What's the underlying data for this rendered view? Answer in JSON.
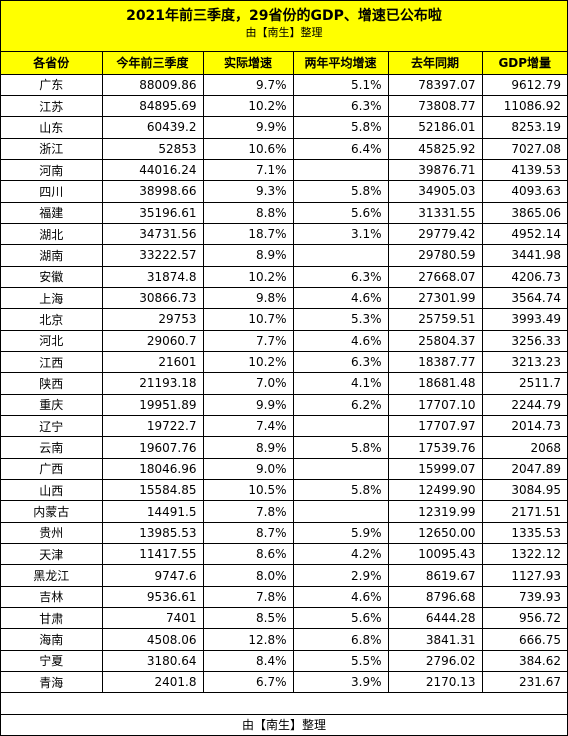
{
  "header": {
    "title": "2021年前三季度，29省份的GDP、增速已公布啦",
    "subtitle": "由【南生】整理"
  },
  "table": {
    "columns": [
      "各省份",
      "今年前三季度",
      "实际增速",
      "两年平均增速",
      "去年同期",
      "GDP增量"
    ],
    "rows": [
      [
        "广东",
        "88009.86",
        "9.7%",
        "5.1%",
        "78397.07",
        "9612.79"
      ],
      [
        "江苏",
        "84895.69",
        "10.2%",
        "6.3%",
        "73808.77",
        "11086.92"
      ],
      [
        "山东",
        "60439.2",
        "9.9%",
        "5.8%",
        "52186.01",
        "8253.19"
      ],
      [
        "浙江",
        "52853",
        "10.6%",
        "6.4%",
        "45825.92",
        "7027.08"
      ],
      [
        "河南",
        "44016.24",
        "7.1%",
        "",
        "39876.71",
        "4139.53"
      ],
      [
        "四川",
        "38998.66",
        "9.3%",
        "5.8%",
        "34905.03",
        "4093.63"
      ],
      [
        "福建",
        "35196.61",
        "8.8%",
        "5.6%",
        "31331.55",
        "3865.06"
      ],
      [
        "湖北",
        "34731.56",
        "18.7%",
        "3.1%",
        "29779.42",
        "4952.14"
      ],
      [
        "湖南",
        "33222.57",
        "8.9%",
        "",
        "29780.59",
        "3441.98"
      ],
      [
        "安徽",
        "31874.8",
        "10.2%",
        "6.3%",
        "27668.07",
        "4206.73"
      ],
      [
        "上海",
        "30866.73",
        "9.8%",
        "4.6%",
        "27301.99",
        "3564.74"
      ],
      [
        "北京",
        "29753",
        "10.7%",
        "5.3%",
        "25759.51",
        "3993.49"
      ],
      [
        "河北",
        "29060.7",
        "7.7%",
        "4.6%",
        "25804.37",
        "3256.33"
      ],
      [
        "江西",
        "21601",
        "10.2%",
        "6.3%",
        "18387.77",
        "3213.23"
      ],
      [
        "陕西",
        "21193.18",
        "7.0%",
        "4.1%",
        "18681.48",
        "2511.7"
      ],
      [
        "重庆",
        "19951.89",
        "9.9%",
        "6.2%",
        "17707.10",
        "2244.79"
      ],
      [
        "辽宁",
        "19722.7",
        "7.4%",
        "",
        "17707.97",
        "2014.73"
      ],
      [
        "云南",
        "19607.76",
        "8.9%",
        "5.8%",
        "17539.76",
        "2068"
      ],
      [
        "广西",
        "18046.96",
        "9.0%",
        "",
        "15999.07",
        "2047.89"
      ],
      [
        "山西",
        "15584.85",
        "10.5%",
        "5.8%",
        "12499.90",
        "3084.95"
      ],
      [
        "内蒙古",
        "14491.5",
        "7.8%",
        "",
        "12319.99",
        "2171.51"
      ],
      [
        "贵州",
        "13985.53",
        "8.7%",
        "5.9%",
        "12650.00",
        "1335.53"
      ],
      [
        "天津",
        "11417.55",
        "8.6%",
        "4.2%",
        "10095.43",
        "1322.12"
      ],
      [
        "黑龙江",
        "9747.6",
        "8.0%",
        "2.9%",
        "8619.67",
        "1127.93"
      ],
      [
        "吉林",
        "9536.61",
        "7.8%",
        "4.6%",
        "8796.68",
        "739.93"
      ],
      [
        "甘肃",
        "7401",
        "8.5%",
        "5.6%",
        "6444.28",
        "956.72"
      ],
      [
        "海南",
        "4508.06",
        "12.8%",
        "6.8%",
        "3841.31",
        "666.75"
      ],
      [
        "宁夏",
        "3180.64",
        "8.4%",
        "5.5%",
        "2796.02",
        "384.62"
      ],
      [
        "青海",
        "2401.8",
        "6.7%",
        "3.9%",
        "2170.13",
        "231.67"
      ]
    ]
  },
  "footer": {
    "text": "由【南生】整理"
  }
}
